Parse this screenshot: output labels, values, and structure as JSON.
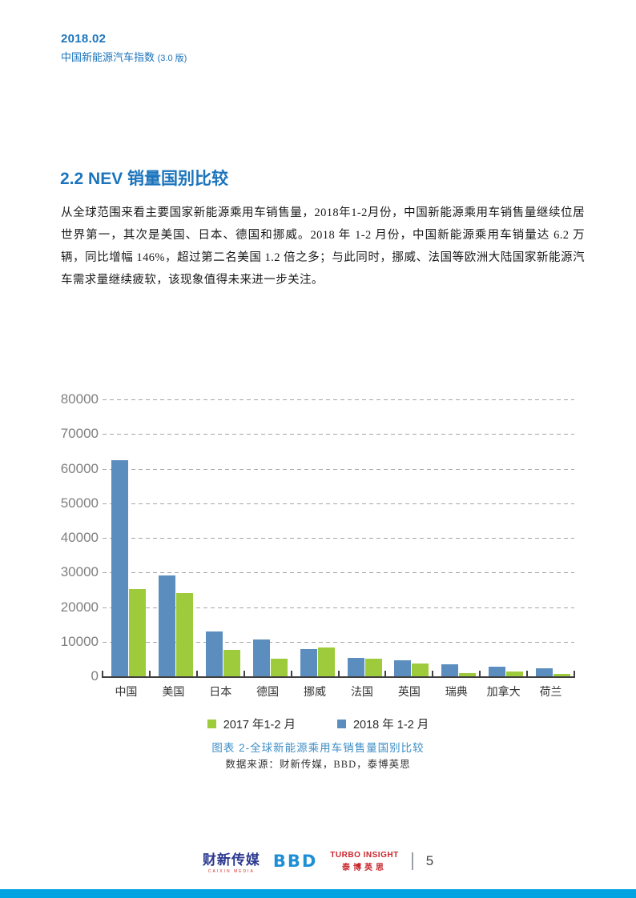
{
  "header": {
    "issue_date": "2018.02",
    "publication": "中国新能源汽车指数",
    "version": "(3.0 版)"
  },
  "section": {
    "title": "2.2 NEV 销量国别比较",
    "paragraph": "从全球范围来看主要国家新能源乘用车销售量，2018年1-2月份，中国新能源乘用车销售量继续位居世界第一，其次是美国、日本、德国和挪威。2018 年 1-2 月份，中国新能源乘用车销量达 6.2 万辆，同比增幅 146%，超过第二名美国 1.2 倍之多；与此同时，挪威、法国等欧洲大陆国家新能源汽车需求量继续疲软，该现象值得未来进一步关注。"
  },
  "chart_data": {
    "type": "bar",
    "categories": [
      "中国",
      "美国",
      "日本",
      "德国",
      "挪威",
      "法国",
      "英国",
      "瑞典",
      "加拿大",
      "荷兰"
    ],
    "series": [
      {
        "name": "2017 年1-2 月",
        "color": "#9DCB3C",
        "values": [
          25300,
          24000,
          7600,
          5200,
          8400,
          5200,
          3600,
          900,
          1300,
          600
        ]
      },
      {
        "name": "2018 年 1-2 月",
        "color": "#5B8EBF",
        "values": [
          62500,
          29200,
          12900,
          10600,
          7800,
          5300,
          4600,
          3500,
          2700,
          2400
        ]
      }
    ],
    "visual_order": [
      1,
      0
    ],
    "title": "",
    "xlabel": "",
    "ylabel": "",
    "ylim": [
      0,
      80000
    ],
    "ytick_interval": 10000,
    "grid": "horizontal-dashed",
    "legend_position": "bottom"
  },
  "figure": {
    "caption": "图表 2-全球新能源乘用车销售量国别比较",
    "source": "数据来源：财新传媒，BBD，泰博英思"
  },
  "footer": {
    "caixin_logo": "财新传媒",
    "caixin_logo_sub": "CAIXIN MEDIA",
    "bbd_logo": "BBD",
    "turbo_logo_en": "TURBO INSIGHT",
    "turbo_logo_cn": "泰博英思",
    "page_number": "5"
  },
  "colors": {
    "accent_blue": "#1B74BC",
    "caption_blue": "#3E8EC6",
    "chart_blue": "#5B8EBF",
    "chart_green": "#9DCB3C",
    "footer_red": "#C9252C",
    "bottom_bar_blue": "#00A3E2",
    "gridline_gray": "#A6A6A6",
    "axis_gray": "#404040"
  }
}
